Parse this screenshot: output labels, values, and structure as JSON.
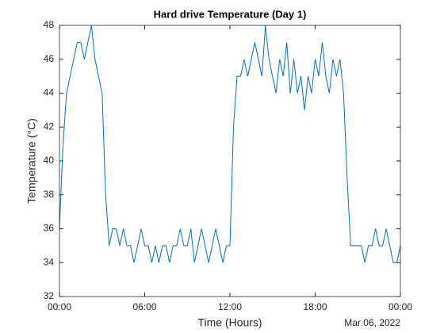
{
  "chart_data": {
    "type": "line",
    "title": "Hard drive Temperature (Day 1)",
    "x_label": "Time (Hours)",
    "y_label": "Temperature (°C)",
    "date_label": "Mar 06, 2022",
    "x": [
      0,
      0.25,
      0.5,
      0.75,
      1,
      1.25,
      1.5,
      1.75,
      2,
      2.25,
      2.5,
      2.75,
      3,
      3.25,
      3.5,
      3.75,
      4,
      4.25,
      4.5,
      4.75,
      5,
      5.25,
      5.5,
      5.75,
      6,
      6.25,
      6.5,
      6.75,
      7,
      7.25,
      7.5,
      7.75,
      8,
      8.25,
      8.5,
      8.75,
      9,
      9.25,
      9.5,
      9.75,
      10,
      10.25,
      10.5,
      10.75,
      11,
      11.25,
      11.5,
      11.75,
      12,
      12.25,
      12.5,
      12.75,
      13,
      13.25,
      13.5,
      13.75,
      14,
      14.25,
      14.5,
      14.75,
      15,
      15.25,
      15.5,
      15.75,
      16,
      16.25,
      16.5,
      16.75,
      17,
      17.25,
      17.5,
      17.75,
      18,
      18.25,
      18.5,
      18.75,
      19,
      19.25,
      19.5,
      19.75,
      20,
      20.25,
      20.5,
      20.75,
      21,
      21.25,
      21.5,
      21.75,
      22,
      22.25,
      22.5,
      22.75,
      23,
      23.25,
      23.5,
      23.75,
      24
    ],
    "series": [
      {
        "name": "Temperature",
        "color": "#0072bd",
        "values": [
          36,
          41,
          44,
          45,
          46,
          47,
          47,
          46,
          47,
          48,
          46,
          45,
          44,
          38,
          35,
          36,
          36,
          35,
          36,
          35,
          35,
          34,
          35,
          36,
          35,
          35,
          34,
          35,
          34,
          35,
          35,
          34,
          35,
          35,
          36,
          35,
          35,
          36,
          34,
          35,
          36,
          35,
          34,
          35,
          36,
          35,
          34,
          35,
          35,
          42,
          45,
          45,
          46,
          45,
          46,
          47,
          46,
          45,
          48,
          46,
          45,
          44,
          46,
          45,
          47,
          44,
          46,
          44,
          45,
          43,
          45,
          44,
          46,
          45,
          47,
          45,
          44,
          46,
          45,
          46,
          44,
          39,
          35,
          35,
          35,
          35,
          34,
          35,
          35,
          36,
          35,
          35,
          36,
          35,
          34,
          34,
          35
        ]
      }
    ],
    "xlim": [
      0,
      24
    ],
    "xticks": [
      {
        "value": 0,
        "label": "00:00"
      },
      {
        "value": 6,
        "label": "06:00"
      },
      {
        "value": 12,
        "label": "12:00"
      },
      {
        "value": 18,
        "label": "18:00"
      },
      {
        "value": 24,
        "label": "00:00"
      }
    ],
    "ylim": [
      32,
      48
    ],
    "yticks": [
      32,
      34,
      36,
      38,
      40,
      42,
      44,
      46,
      48
    ],
    "grid": false
  }
}
